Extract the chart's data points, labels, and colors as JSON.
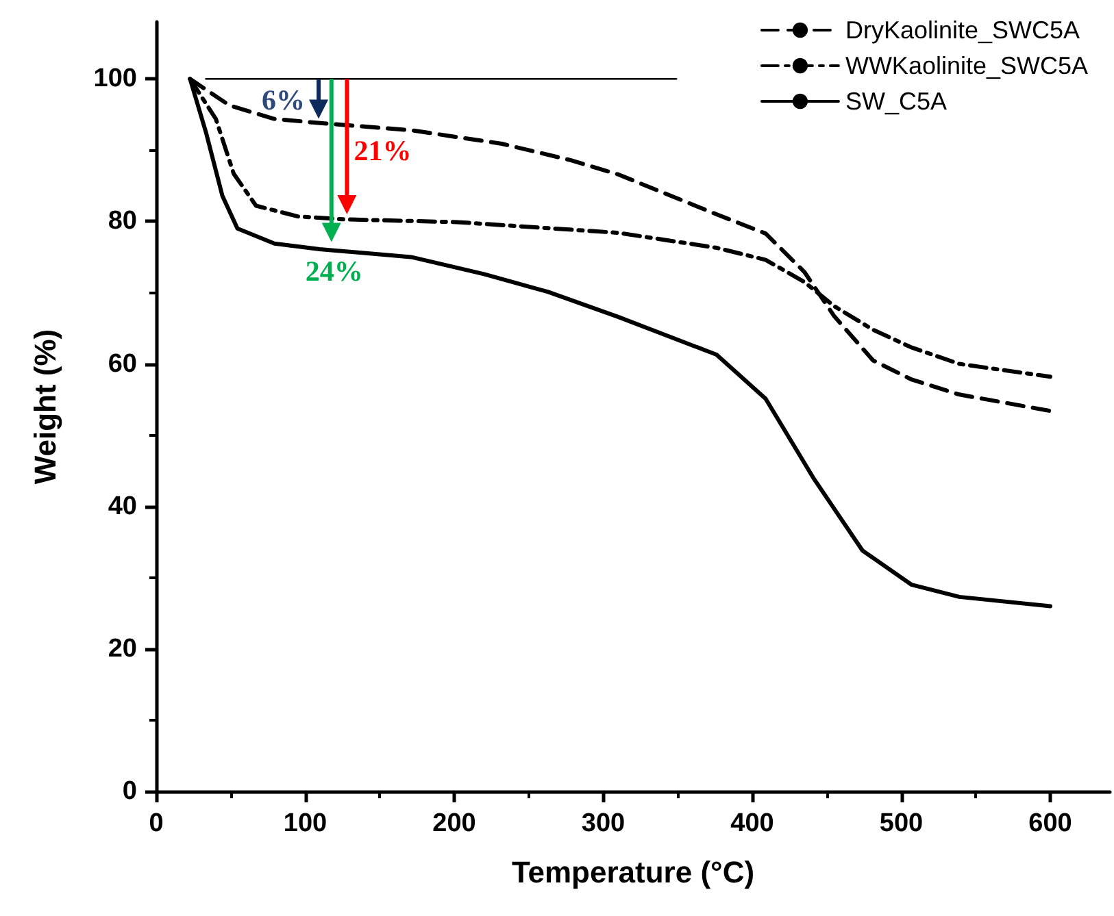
{
  "chart_data": {
    "type": "line",
    "xlabel": "Temperature (°C)",
    "ylabel": "Weight (%)",
    "xlim": [
      0,
      640
    ],
    "xticks": [
      0,
      100,
      200,
      300,
      400,
      500,
      600
    ],
    "ylim": [
      0,
      108
    ],
    "yticks": [
      0,
      20,
      40,
      60,
      80,
      100
    ],
    "legend": "top right",
    "grid": false,
    "marker": "none",
    "series": [
      {
        "name": "DryKaolinite_SWC5A",
        "color": "#000000",
        "line_style": "dashed",
        "x": [
          22.7,
          49,
          79,
          110,
          171,
          232,
          278,
          310,
          376,
          409,
          435,
          455,
          481,
          507,
          539,
          600
        ],
        "values": [
          100,
          96.3,
          94.4,
          93.8,
          92.8,
          90.9,
          88.6,
          86.6,
          81,
          78.3,
          72.9,
          66.7,
          60.5,
          57.8,
          55.7,
          53.4
        ]
      },
      {
        "name": "WWKaolinite_SWC5A",
        "color": "#000000",
        "line_style": "dashdot",
        "x": [
          22.7,
          40,
          52,
          67,
          95,
          125,
          202,
          310,
          376,
          409,
          435,
          455,
          481,
          507,
          539,
          600
        ],
        "values": [
          100,
          94.4,
          86.7,
          82.2,
          80.7,
          80.3,
          79.9,
          78.4,
          76.3,
          74.6,
          71.5,
          68.1,
          64.8,
          62.3,
          60,
          58.2
        ]
      },
      {
        "name": "SW_C5A",
        "color": "#000000",
        "line_style": "solid",
        "x": [
          22.7,
          33.4,
          44.4,
          54.5,
          79.3,
          109.6,
          171,
          220,
          263,
          310,
          376,
          409,
          441,
          474,
          507,
          539,
          600
        ],
        "values": [
          100,
          92.5,
          83.6,
          79,
          76.9,
          76.1,
          75,
          72.6,
          70.1,
          66.6,
          61.3,
          55.1,
          44,
          33.8,
          29,
          27.3,
          26
        ]
      },
      {
        "color": "#000000",
        "line_style": "solid",
        "x": [
          33.4,
          349
        ],
        "values": [
          100,
          100
        ]
      }
    ],
    "annotations": [
      {
        "text": "6%",
        "x": 109,
        "y": 94.4
      },
      {
        "text": "21%",
        "x": 128,
        "y": 81
      },
      {
        "text": "24%",
        "x": 117.6,
        "y": 77.1
      }
    ]
  }
}
